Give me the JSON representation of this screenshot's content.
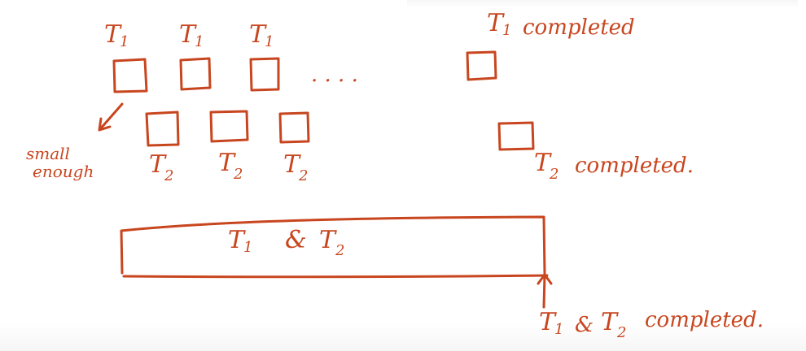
{
  "diagram": {
    "t1_label": "T",
    "t1_sub": "1",
    "t2_label": "T",
    "t2_sub": "2",
    "dots": ". . . .",
    "small_enough": [
      "small",
      "enough"
    ],
    "t1_completed": "completed",
    "t2_completed": "completed.",
    "combined": {
      "t1": "T",
      "t1_sub": "1",
      "amp": "&",
      "t2": "T",
      "t2_sub": "2"
    },
    "both_completed": {
      "t1": "T",
      "t1_sub": "1",
      "amp": "&",
      "t2": "T",
      "t2_sub": "2",
      "word": "completed."
    }
  },
  "colors": {
    "ink": "#c8461f"
  }
}
